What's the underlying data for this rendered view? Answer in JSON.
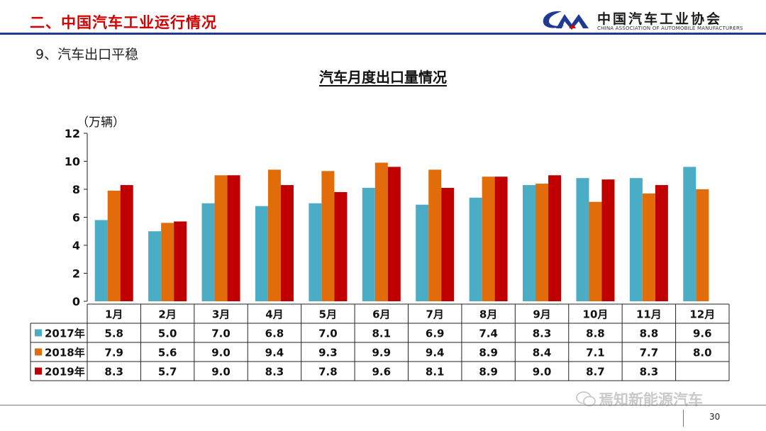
{
  "header": {
    "title": "二、中国汽车工业运行情况",
    "logo_text": "中国汽车工业协会",
    "logo_subtext": "CHINA ASSOCIATION OF AUTOMOBILE MANUFACTURERS"
  },
  "section_title": "9、汽车出口平稳",
  "footer": {
    "page_number": "30",
    "watermark": "焉知新能源汽车"
  },
  "colors": {
    "header_red": "#d40000",
    "rule_blue": "#1f3a93",
    "series_2017": "#4bacc6",
    "series_2018": "#e36c0a",
    "series_2019": "#c00000"
  },
  "chart_data": {
    "type": "bar",
    "title": "汽车月度出口量情况",
    "ylabel": "（万辆）",
    "ylim": [
      0,
      12
    ],
    "yticks": [
      "0",
      "2",
      "4",
      "6",
      "8",
      "10",
      "12"
    ],
    "grid": false,
    "legend": "data-table",
    "categories": [
      "1月",
      "2月",
      "3月",
      "4月",
      "5月",
      "6月",
      "7月",
      "8月",
      "9月",
      "10月",
      "11月",
      "12月"
    ],
    "series": [
      {
        "name": "2017年",
        "color": "#4bacc6",
        "values": [
          5.8,
          5.0,
          7.0,
          6.8,
          7.0,
          8.1,
          6.9,
          7.4,
          8.3,
          8.8,
          8.8,
          9.6
        ],
        "labels": [
          "5.8",
          "5.0",
          "7.0",
          "6.8",
          "7.0",
          "8.1",
          "6.9",
          "7.4",
          "8.3",
          "8.8",
          "8.8",
          "9.6"
        ]
      },
      {
        "name": "2018年",
        "color": "#e36c0a",
        "values": [
          7.9,
          5.6,
          9.0,
          9.4,
          9.3,
          9.9,
          9.4,
          8.9,
          8.4,
          7.1,
          7.7,
          8.0
        ],
        "labels": [
          "7.9",
          "5.6",
          "9.0",
          "9.4",
          "9.3",
          "9.9",
          "9.4",
          "8.9",
          "8.4",
          "7.1",
          "7.7",
          "8.0"
        ]
      },
      {
        "name": "2019年",
        "color": "#c00000",
        "values": [
          8.3,
          5.7,
          9.0,
          8.3,
          7.8,
          9.6,
          8.1,
          8.9,
          9.0,
          8.7,
          8.3,
          null
        ],
        "labels": [
          "8.3",
          "5.7",
          "9.0",
          "8.3",
          "7.8",
          "9.6",
          "8.1",
          "8.9",
          "9.0",
          "8.7",
          "8.3",
          ""
        ]
      }
    ]
  }
}
